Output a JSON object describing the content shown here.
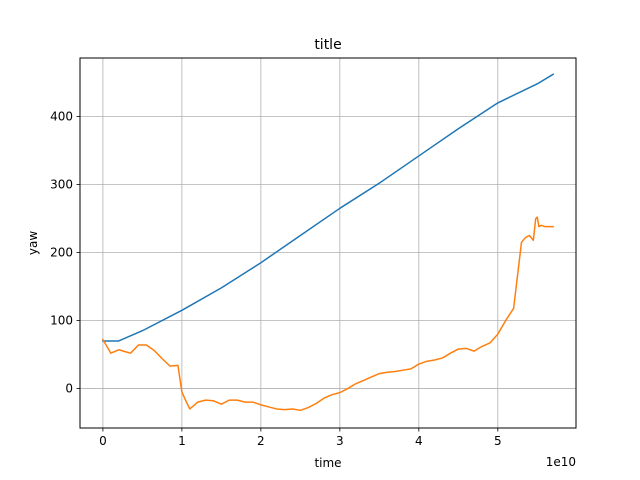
{
  "chart_data": {
    "type": "line",
    "title": "title",
    "xlabel": "time",
    "ylabel": "yaw",
    "x_offset_text": "1e10",
    "xlim": [
      -0.29,
      5.99
    ],
    "ylim": [
      -58,
      486
    ],
    "xticks": [
      0,
      1,
      2,
      3,
      4,
      5
    ],
    "xtick_labels": [
      "0",
      "1",
      "2",
      "3",
      "4",
      "5"
    ],
    "yticks": [
      0,
      100,
      200,
      300,
      400
    ],
    "ytick_labels": [
      "0",
      "100",
      "200",
      "300",
      "400"
    ],
    "grid": true,
    "colors": [
      "#1f77b4",
      "#ff7f0e"
    ],
    "series": [
      {
        "x": [
          0,
          0.2,
          0.5,
          1.0,
          1.5,
          2.0,
          2.5,
          3.0,
          3.5,
          4.0,
          4.5,
          5.0,
          5.5,
          5.7
        ],
        "values": [
          70,
          70,
          85,
          115,
          148,
          185,
          225,
          265,
          302,
          342,
          382,
          420,
          448,
          462
        ]
      },
      {
        "x": [
          0,
          0.1,
          0.2,
          0.35,
          0.45,
          0.55,
          0.65,
          0.75,
          0.85,
          0.95,
          1.0,
          1.05,
          1.1,
          1.2,
          1.3,
          1.4,
          1.5,
          1.6,
          1.7,
          1.8,
          1.9,
          2.0,
          2.1,
          2.2,
          2.3,
          2.4,
          2.5,
          2.6,
          2.7,
          2.8,
          2.9,
          3.0,
          3.1,
          3.2,
          3.3,
          3.4,
          3.5,
          3.6,
          3.7,
          3.8,
          3.9,
          4.0,
          4.1,
          4.2,
          4.3,
          4.4,
          4.5,
          4.6,
          4.7,
          4.8,
          4.9,
          5.0,
          5.1,
          5.2,
          5.3,
          5.35,
          5.4,
          5.45,
          5.48,
          5.5,
          5.52,
          5.55,
          5.6,
          5.65,
          5.7
        ],
        "values": [
          72,
          52,
          57,
          52,
          64,
          64,
          56,
          44,
          33,
          34,
          -5,
          -18,
          -30,
          -20,
          -17,
          -18,
          -23,
          -17,
          -17,
          -20,
          -20,
          -24,
          -27,
          -30,
          -31,
          -30,
          -32,
          -28,
          -22,
          -14,
          -9,
          -6,
          0,
          7,
          12,
          17,
          22,
          24,
          25,
          27,
          29,
          36,
          40,
          42,
          45,
          52,
          58,
          59,
          55,
          62,
          67,
          80,
          100,
          118,
          215,
          222,
          225,
          218,
          250,
          252,
          238,
          240,
          238,
          238,
          238
        ]
      }
    ]
  }
}
